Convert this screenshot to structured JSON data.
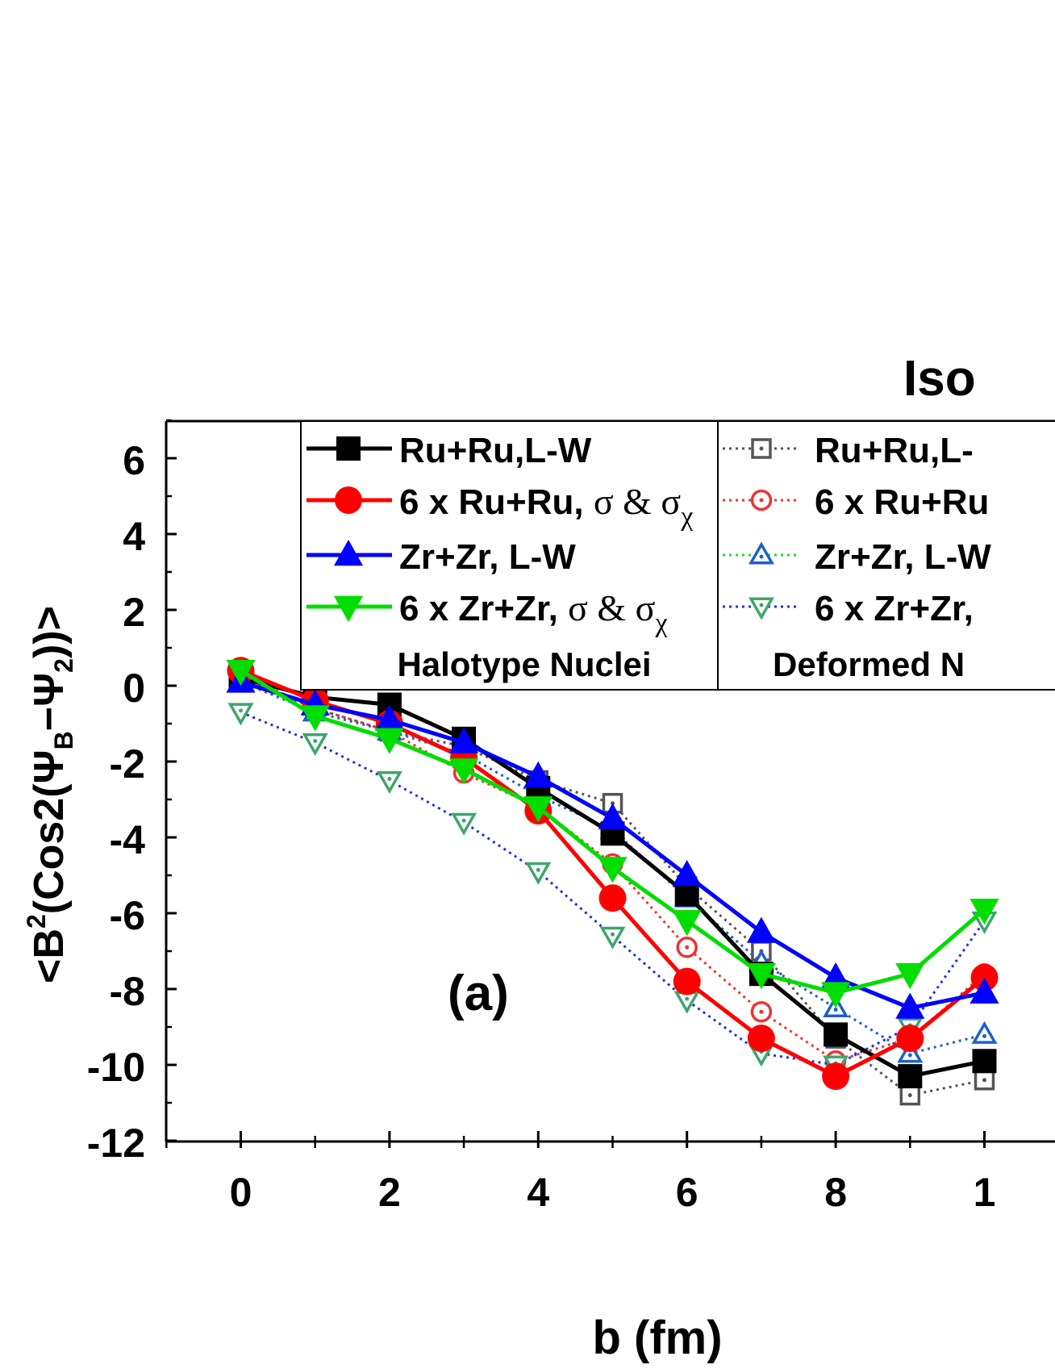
{
  "chart_data": {
    "type": "line",
    "title_fragment": "Iso",
    "panel_label": "(a)",
    "xlabel": "b (fm)",
    "ylabel": {
      "prefix": "<B",
      "sup": "2",
      "middle": "(Cos2(Ψ",
      "sub1": "B",
      "dash": "−Ψ",
      "sub2": "2",
      "suffix": "))>"
    },
    "xlim": [
      -1,
      10
    ],
    "ylim": [
      -12,
      7
    ],
    "x_ticks": [
      "0",
      "2",
      "4",
      "6",
      "8",
      "1"
    ],
    "y_ticks": [
      "6",
      "4",
      "2",
      "0",
      "-2",
      "-4",
      "-6",
      "-8",
      "-10",
      "-12"
    ],
    "legend_groups": [
      {
        "title": "Halotype Nuclei"
      },
      {
        "title": "Deformed N"
      }
    ],
    "series": [
      {
        "key": "ru_lw_def",
        "name": "Ru+Ru,L-",
        "color": "#555555",
        "style": "dotted",
        "marker": "square-open",
        "x": [
          0,
          1,
          2,
          3,
          4,
          5,
          6,
          7,
          8,
          9,
          10
        ],
        "y": [
          0.2,
          -0.6,
          -1.2,
          -1.6,
          -2.5,
          -3.1,
          -5.3,
          -7.0,
          -9.3,
          -10.8,
          -10.4
        ]
      },
      {
        "key": "ru_6x_def",
        "name": "6 x Ru+Ru",
        "color": "#ee3333",
        "style": "dotted",
        "marker": "circle-open",
        "x": [
          0,
          1,
          2,
          3,
          4,
          5,
          6,
          7,
          8,
          9,
          10
        ],
        "y": [
          0.3,
          -0.6,
          -1.2,
          -2.3,
          -3.2,
          -4.7,
          -6.9,
          -8.6,
          -9.9,
          -9.3,
          -7.6
        ]
      },
      {
        "key": "zr_lw_def",
        "name": "Zr+Zr, L-W",
        "color": "#1f5fc8",
        "style": "dotted",
        "marker": "triangle-up-open",
        "x": [
          0,
          1,
          2,
          3,
          4,
          5,
          6,
          7,
          8,
          9,
          10
        ],
        "y": [
          0.1,
          -0.7,
          -1.2,
          -1.8,
          -2.9,
          -3.8,
          -5.6,
          -7.3,
          -8.5,
          -9.7,
          -9.2
        ]
      },
      {
        "key": "zr_6x_def",
        "name": "6 x Zr+Zr,",
        "color": "#3fa56b",
        "style": "dotted",
        "marker": "triangle-down-open",
        "x": [
          0,
          1,
          2,
          3,
          4,
          5,
          6,
          7,
          8,
          9,
          10
        ],
        "y": [
          -0.7,
          -1.5,
          -2.5,
          -3.6,
          -4.9,
          -6.6,
          -8.3,
          -9.7,
          -10.0,
          -9.0,
          -6.2
        ],
        "line_color": "#2233dd"
      },
      {
        "key": "ru_lw",
        "name": "Ru+Ru,L-W",
        "color": "#000000",
        "style": "solid",
        "marker": "square",
        "x": [
          0,
          1,
          2,
          3,
          4,
          5,
          6,
          7,
          8,
          9,
          10
        ],
        "y": [
          0.2,
          -0.3,
          -0.5,
          -1.4,
          -2.7,
          -3.9,
          -5.5,
          -7.6,
          -9.2,
          -10.3,
          -9.9
        ]
      },
      {
        "key": "ru_6x",
        "name": "6 x Ru+Ru, σ & σ",
        "name_sub": "χ",
        "color": "#ff0000",
        "style": "solid",
        "marker": "circle",
        "x": [
          0,
          1,
          2,
          3,
          4,
          5,
          6,
          7,
          8,
          9,
          10
        ],
        "y": [
          0.4,
          -0.4,
          -1.0,
          -1.9,
          -3.3,
          -5.6,
          -7.8,
          -9.3,
          -10.3,
          -9.3,
          -7.7
        ]
      },
      {
        "key": "zr_lw",
        "name": "Zr+Zr, L-W",
        "color": "#0000ff",
        "style": "solid",
        "marker": "triangle-up",
        "x": [
          0,
          1,
          2,
          3,
          4,
          5,
          6,
          7,
          8,
          9,
          10
        ],
        "y": [
          0.1,
          -0.5,
          -0.9,
          -1.5,
          -2.4,
          -3.5,
          -5.0,
          -6.5,
          -7.7,
          -8.5,
          -8.1
        ]
      },
      {
        "key": "zr_6x",
        "name": "6 x Zr+Zr, σ & σ",
        "name_sub": "χ",
        "color": "#00dd00",
        "style": "solid",
        "marker": "triangle-down",
        "x": [
          0,
          1,
          2,
          3,
          4,
          5,
          6,
          7,
          8,
          9,
          10
        ],
        "y": [
          0.4,
          -0.8,
          -1.4,
          -2.2,
          -3.2,
          -4.8,
          -6.2,
          -7.6,
          -8.1,
          -7.6,
          -5.9
        ]
      }
    ]
  }
}
